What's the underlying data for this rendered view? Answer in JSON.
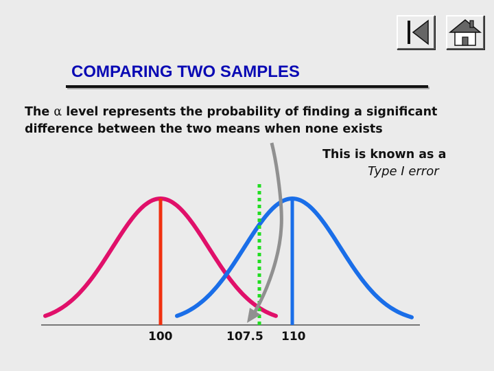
{
  "title": "COMPARING TWO SAMPLES",
  "body": {
    "line1_before": "The ",
    "alpha_symbol": "α",
    "line1_after": " level represents the probability of finding a significant",
    "line2": "difference between the two means when none exists"
  },
  "callout": {
    "line1": "This is known as a",
    "line2": "Type I error"
  },
  "nav": {
    "back_icon": "back-icon",
    "home_icon": "home-icon"
  },
  "colors": {
    "background": "#ebebeb",
    "title": "#0a0ab4",
    "curve_a": "#e0106a",
    "curve_b": "#1a6ee8",
    "mean_a_line": "#f03010",
    "mean_b_line": "#1a6ee8",
    "critical_line": "#22dd22",
    "arrow": "#909090"
  },
  "chart_data": {
    "type": "line",
    "x_ticks": [
      "100",
      "107.5",
      "110"
    ],
    "series": [
      {
        "mean": 100
      },
      {
        "mean": 110
      }
    ],
    "critical_value": 107.5
  }
}
